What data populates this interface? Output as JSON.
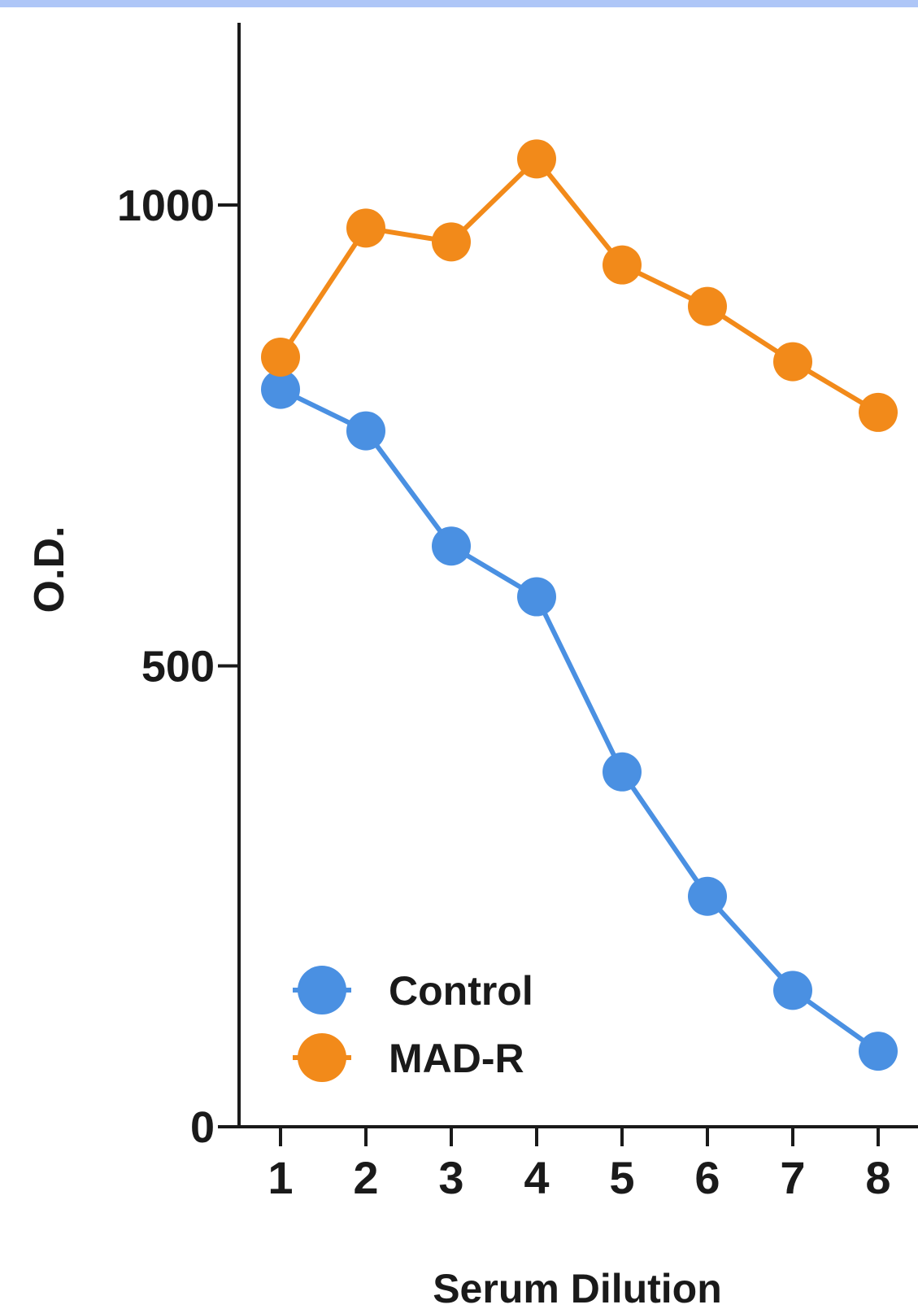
{
  "chart_data": {
    "type": "line",
    "title": "",
    "xlabel": "Serum Dilution",
    "ylabel": "O.D.",
    "x": [
      1,
      2,
      3,
      4,
      5,
      6,
      7,
      8
    ],
    "x_tick_labels": [
      "1",
      "2",
      "3",
      "4",
      "5",
      "6",
      "7",
      "8"
    ],
    "y_ticks": [
      0,
      500,
      1000
    ],
    "y_tick_labels": [
      "0",
      "500",
      "1000"
    ],
    "ylim": [
      0,
      1200
    ],
    "grid": false,
    "legend_position": "bottom-left",
    "series": [
      {
        "name": "Control",
        "color": "#4a90e2",
        "values": [
          800,
          755,
          630,
          575,
          385,
          250,
          148,
          82
        ]
      },
      {
        "name": "MAD-R",
        "color": "#f28a1a",
        "values": [
          835,
          975,
          960,
          1050,
          935,
          890,
          830,
          775
        ]
      }
    ]
  }
}
